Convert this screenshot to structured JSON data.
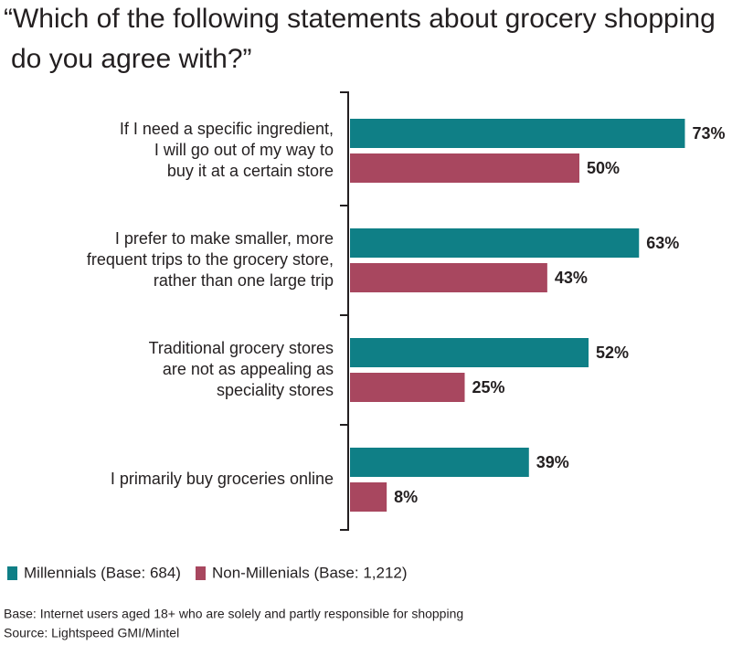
{
  "chart_data": {
    "type": "bar",
    "orientation": "horizontal",
    "title": [
      "“Which of the following statements about grocery shopping",
      "do you agree with?”"
    ],
    "categories": [
      [
        "If I need a specific ingredient,",
        "I will go out of my way to",
        "buy it at a certain store"
      ],
      [
        "I prefer to make smaller, more",
        "frequent trips to the grocery store,",
        "rather than one large trip"
      ],
      [
        "Traditional grocery stores",
        "are not as appealing as",
        "speciality stores"
      ],
      [
        "I primarily buy groceries online"
      ]
    ],
    "series": [
      {
        "name": "Millennials (Base: 684)",
        "color": "#0f7f86",
        "values": [
          73,
          63,
          52,
          39
        ],
        "value_labels": [
          "73%",
          "63%",
          "52%",
          "39%"
        ]
      },
      {
        "name": "Non-Millenials (Base: 1,212)",
        "color": "#a8475f",
        "values": [
          50,
          43,
          25,
          8
        ],
        "value_labels": [
          "50%",
          "43%",
          "25%",
          "8%"
        ]
      }
    ],
    "notes": [
      "Base: Internet users aged 18+ who are solely and partly responsible for shopping",
      "Source: Lightspeed GMI/Mintel"
    ]
  }
}
